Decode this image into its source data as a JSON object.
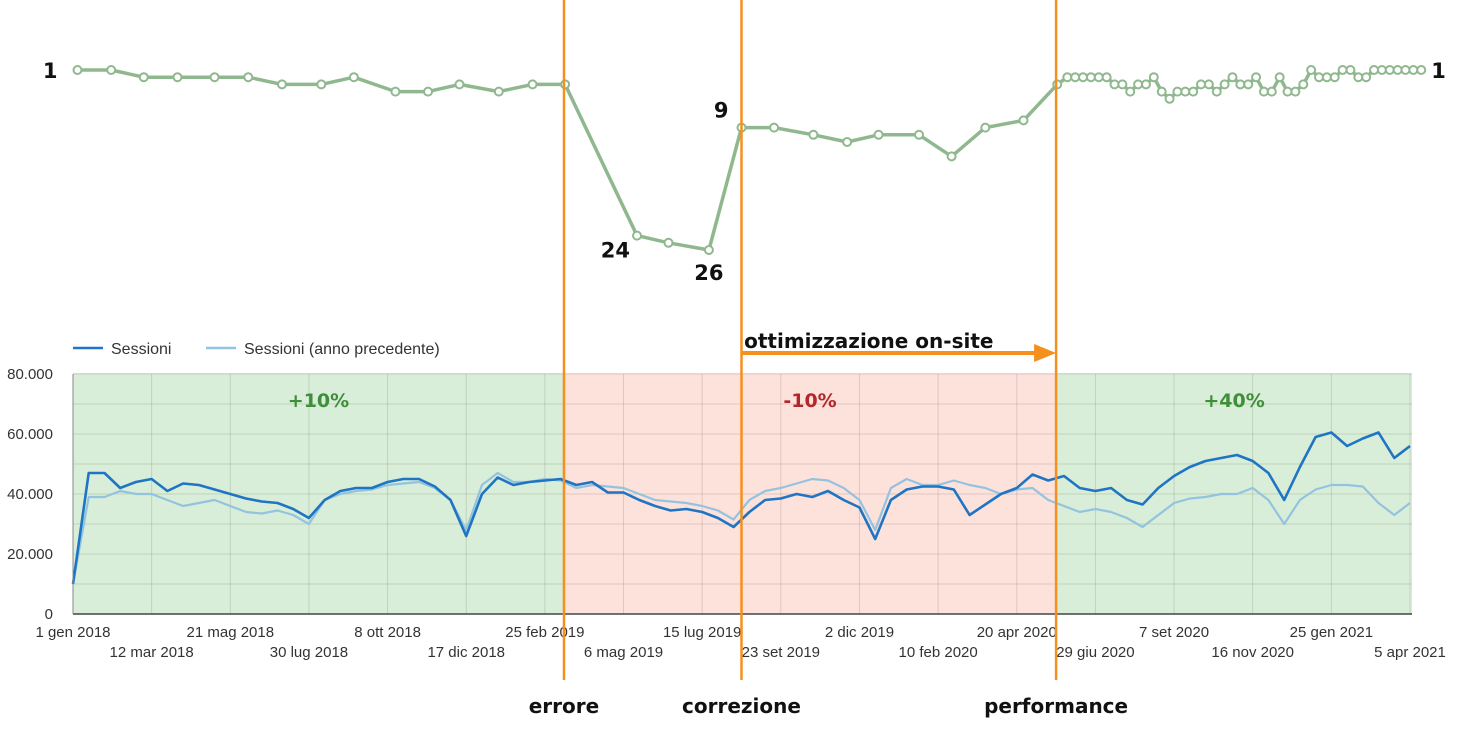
{
  "chart_data": [
    {
      "type": "line",
      "description_role": "ranking",
      "y_axis": "reversed",
      "ylim": [
        1,
        26
      ],
      "color": "#8fb88f",
      "marker": "hollow-circle",
      "points": [
        [
          "2018-01-05",
          1
        ],
        [
          "2018-02-04",
          1
        ],
        [
          "2018-03-05",
          2
        ],
        [
          "2018-04-04",
          2
        ],
        [
          "2018-05-07",
          2
        ],
        [
          "2018-06-06",
          2
        ],
        [
          "2018-07-06",
          3
        ],
        [
          "2018-08-10",
          3
        ],
        [
          "2018-09-08",
          2
        ],
        [
          "2018-10-15",
          4
        ],
        [
          "2018-11-13",
          4
        ],
        [
          "2018-12-11",
          3
        ],
        [
          "2019-01-15",
          4
        ],
        [
          "2019-02-14",
          3
        ],
        [
          "2019-03-15",
          3
        ],
        [
          "2019-05-18",
          24
        ],
        [
          "2019-06-15",
          25
        ],
        [
          "2019-07-21",
          26
        ],
        [
          "2019-08-19",
          9
        ],
        [
          "2019-09-17",
          9
        ],
        [
          "2019-10-22",
          10
        ],
        [
          "2019-11-21",
          11
        ],
        [
          "2019-12-19",
          10
        ],
        [
          "2020-01-24",
          10
        ],
        [
          "2020-02-22",
          13
        ],
        [
          "2020-03-23",
          9
        ],
        [
          "2020-04-26",
          8
        ],
        [
          "2020-05-26",
          3
        ],
        [
          "2020-06-04",
          2
        ],
        [
          "2020-06-11",
          2
        ],
        [
          "2020-06-18",
          2
        ],
        [
          "2020-06-25",
          2
        ],
        [
          "2020-07-02",
          2
        ],
        [
          "2020-07-09",
          2
        ],
        [
          "2020-07-16",
          3
        ],
        [
          "2020-07-23",
          3
        ],
        [
          "2020-07-30",
          4
        ],
        [
          "2020-08-06",
          3
        ],
        [
          "2020-08-13",
          3
        ],
        [
          "2020-08-20",
          2
        ],
        [
          "2020-08-27",
          4
        ],
        [
          "2020-09-03",
          5
        ],
        [
          "2020-09-10",
          4
        ],
        [
          "2020-09-17",
          4
        ],
        [
          "2020-09-24",
          4
        ],
        [
          "2020-10-01",
          3
        ],
        [
          "2020-10-08",
          3
        ],
        [
          "2020-10-15",
          4
        ],
        [
          "2020-10-22",
          3
        ],
        [
          "2020-10-29",
          2
        ],
        [
          "2020-11-05",
          3
        ],
        [
          "2020-11-12",
          3
        ],
        [
          "2020-11-19",
          2
        ],
        [
          "2020-11-26",
          4
        ],
        [
          "2020-12-03",
          4
        ],
        [
          "2020-12-10",
          2
        ],
        [
          "2020-12-17",
          4
        ],
        [
          "2020-12-24",
          4
        ],
        [
          "2020-12-31",
          3
        ],
        [
          "2021-01-07",
          1
        ],
        [
          "2021-01-14",
          2
        ],
        [
          "2021-01-21",
          2
        ],
        [
          "2021-01-28",
          2
        ],
        [
          "2021-02-04",
          1
        ],
        [
          "2021-02-11",
          1
        ],
        [
          "2021-02-18",
          2
        ],
        [
          "2021-02-25",
          2
        ],
        [
          "2021-03-04",
          1
        ],
        [
          "2021-03-11",
          1
        ],
        [
          "2021-03-18",
          1
        ],
        [
          "2021-03-25",
          1
        ],
        [
          "2021-04-01",
          1
        ],
        [
          "2021-04-08",
          1
        ],
        [
          "2021-04-15",
          1
        ]
      ],
      "labels": [
        {
          "text": "1",
          "date": "2018-01-05",
          "rank": 1,
          "side": "left"
        },
        {
          "text": "24",
          "date": "2019-05-18",
          "rank": 24,
          "side": "below-left"
        },
        {
          "text": "26",
          "date": "2019-07-21",
          "rank": 26,
          "side": "below"
        },
        {
          "text": "9",
          "date": "2019-08-19",
          "rank": 9,
          "side": "above-left"
        },
        {
          "text": "1",
          "date": "2021-04-15",
          "rank": 1,
          "side": "right"
        }
      ]
    },
    {
      "type": "line",
      "ylim": [
        0,
        80000
      ],
      "grid": true,
      "legend_position": "top-left",
      "yticks": [
        "0",
        "20.000",
        "40.000",
        "60.000",
        "80.000"
      ],
      "ytick_values": [
        0,
        20000,
        40000,
        60000,
        80000
      ],
      "xticks": [
        {
          "label": "1 gen 2018",
          "date": "2018-01-01",
          "row": 1
        },
        {
          "label": "12 mar 2018",
          "date": "2018-03-12",
          "row": 2
        },
        {
          "label": "21 mag 2018",
          "date": "2018-05-21",
          "row": 1
        },
        {
          "label": "30 lug 2018",
          "date": "2018-07-30",
          "row": 2
        },
        {
          "label": "8 ott 2018",
          "date": "2018-10-08",
          "row": 1
        },
        {
          "label": "17 dic 2018",
          "date": "2018-12-17",
          "row": 2
        },
        {
          "label": "25 feb 2019",
          "date": "2019-02-25",
          "row": 1
        },
        {
          "label": "6 mag 2019",
          "date": "2019-05-06",
          "row": 2
        },
        {
          "label": "15 lug 2019",
          "date": "2019-07-15",
          "row": 1
        },
        {
          "label": "23 set 2019",
          "date": "2019-09-23",
          "row": 2
        },
        {
          "label": "2 dic 2019",
          "date": "2019-12-02",
          "row": 1
        },
        {
          "label": "10 feb 2020",
          "date": "2020-02-10",
          "row": 2
        },
        {
          "label": "20 apr 2020",
          "date": "2020-04-20",
          "row": 1
        },
        {
          "label": "29 giu 2020",
          "date": "2020-06-29",
          "row": 2
        },
        {
          "label": "7 set 2020",
          "date": "2020-09-07",
          "row": 1
        },
        {
          "label": "16 nov 2020",
          "date": "2020-11-16",
          "row": 2
        },
        {
          "label": "25 gen 2021",
          "date": "2021-01-25",
          "row": 1
        },
        {
          "label": "5 apr 2021",
          "date": "2021-04-05",
          "row": 2
        }
      ],
      "x": [
        "2018-01-01",
        "2018-01-15",
        "2018-01-29",
        "2018-02-12",
        "2018-02-26",
        "2018-03-12",
        "2018-03-26",
        "2018-04-09",
        "2018-04-23",
        "2018-05-07",
        "2018-05-21",
        "2018-06-04",
        "2018-06-18",
        "2018-07-02",
        "2018-07-16",
        "2018-07-30",
        "2018-08-13",
        "2018-08-27",
        "2018-09-10",
        "2018-09-24",
        "2018-10-08",
        "2018-10-22",
        "2018-11-05",
        "2018-11-19",
        "2018-12-03",
        "2018-12-17",
        "2018-12-31",
        "2019-01-14",
        "2019-01-28",
        "2019-02-11",
        "2019-02-25",
        "2019-03-11",
        "2019-03-25",
        "2019-04-08",
        "2019-04-22",
        "2019-05-06",
        "2019-05-20",
        "2019-06-03",
        "2019-06-17",
        "2019-07-01",
        "2019-07-15",
        "2019-07-29",
        "2019-08-12",
        "2019-08-26",
        "2019-09-09",
        "2019-09-23",
        "2019-10-07",
        "2019-10-21",
        "2019-11-04",
        "2019-11-18",
        "2019-12-02",
        "2019-12-16",
        "2019-12-30",
        "2020-01-13",
        "2020-01-27",
        "2020-02-10",
        "2020-02-24",
        "2020-03-09",
        "2020-03-23",
        "2020-04-06",
        "2020-04-20",
        "2020-05-04",
        "2020-05-18",
        "2020-06-01",
        "2020-06-15",
        "2020-06-29",
        "2020-07-13",
        "2020-07-27",
        "2020-08-10",
        "2020-08-24",
        "2020-09-07",
        "2020-09-21",
        "2020-10-05",
        "2020-10-19",
        "2020-11-02",
        "2020-11-16",
        "2020-11-30",
        "2020-12-14",
        "2020-12-28",
        "2021-01-11",
        "2021-01-25",
        "2021-02-08",
        "2021-02-22",
        "2021-03-08",
        "2021-03-22",
        "2021-04-05"
      ],
      "series": [
        {
          "name": "Sessioni",
          "color": "#1f74c3",
          "values": [
            10000,
            47000,
            47000,
            42000,
            44000,
            45000,
            41000,
            43500,
            43000,
            41500,
            40000,
            38500,
            37500,
            37000,
            35000,
            32000,
            38000,
            41000,
            42000,
            42000,
            44000,
            45000,
            45000,
            42500,
            38000,
            26000,
            40000,
            45500,
            43000,
            44000,
            44500,
            45000,
            43000,
            44000,
            40500,
            40500,
            38000,
            36000,
            34500,
            35000,
            34000,
            32000,
            29000,
            34000,
            38000,
            38500,
            40000,
            39000,
            41000,
            38000,
            35500,
            25000,
            38000,
            41500,
            42500,
            42500,
            41500,
            33000,
            36500,
            40000,
            42000,
            46500,
            44500,
            46000,
            42000,
            41000,
            42000,
            38000,
            36500,
            42000,
            46000,
            49000,
            51000,
            52000,
            53000,
            51000,
            47000,
            38000,
            49000,
            59000,
            60500,
            56000,
            58500,
            60500,
            52000,
            56000
          ]
        },
        {
          "name": "Sessioni (anno precedente)",
          "color": "#93c3df",
          "values": [
            10000,
            39000,
            39000,
            41000,
            40000,
            40000,
            38000,
            36000,
            37000,
            38000,
            36000,
            34000,
            33500,
            34500,
            33000,
            30000,
            38000,
            40000,
            41000,
            41500,
            43000,
            43500,
            44000,
            42000,
            38000,
            28000,
            43000,
            47000,
            44000,
            44000,
            45000,
            44500,
            42000,
            43000,
            42500,
            42000,
            40000,
            38000,
            37500,
            37000,
            36000,
            34500,
            31500,
            38000,
            41000,
            42000,
            43500,
            45000,
            44500,
            42000,
            38000,
            28000,
            42000,
            45000,
            43000,
            43000,
            44500,
            43000,
            42000,
            40000,
            41500,
            42000,
            38000,
            36000,
            34000,
            35000,
            34000,
            32000,
            29000,
            33000,
            37000,
            38500,
            39000,
            40000,
            40000,
            42000,
            38000,
            30000,
            38000,
            41500,
            43000,
            43000,
            42500,
            37000,
            33000,
            37000
          ]
        }
      ],
      "regions": [
        {
          "from": "2018-01-01",
          "to": "2019-03-14",
          "color": "#d9eed8",
          "label": "+10%",
          "label_color": "#3f8f3a"
        },
        {
          "from": "2019-03-14",
          "to": "2020-05-25",
          "color": "#fde2dc",
          "label": "-10%",
          "label_color": "#b3262a"
        },
        {
          "from": "2020-05-25",
          "to": "2021-04-12",
          "color": "#d9eed8",
          "label": "+40%",
          "label_color": "#3f8f3a"
        }
      ]
    }
  ],
  "annotations": {
    "line_color": "#f5901e",
    "events": [
      {
        "label": "errore",
        "date": "2019-03-14"
      },
      {
        "label": "correzione",
        "date": "2019-08-19"
      },
      {
        "label": "performance",
        "date": "2020-05-25"
      }
    ],
    "arrow": {
      "label": "ottimizzazione on-site",
      "from": "2019-08-19",
      "to": "2020-05-25"
    }
  }
}
